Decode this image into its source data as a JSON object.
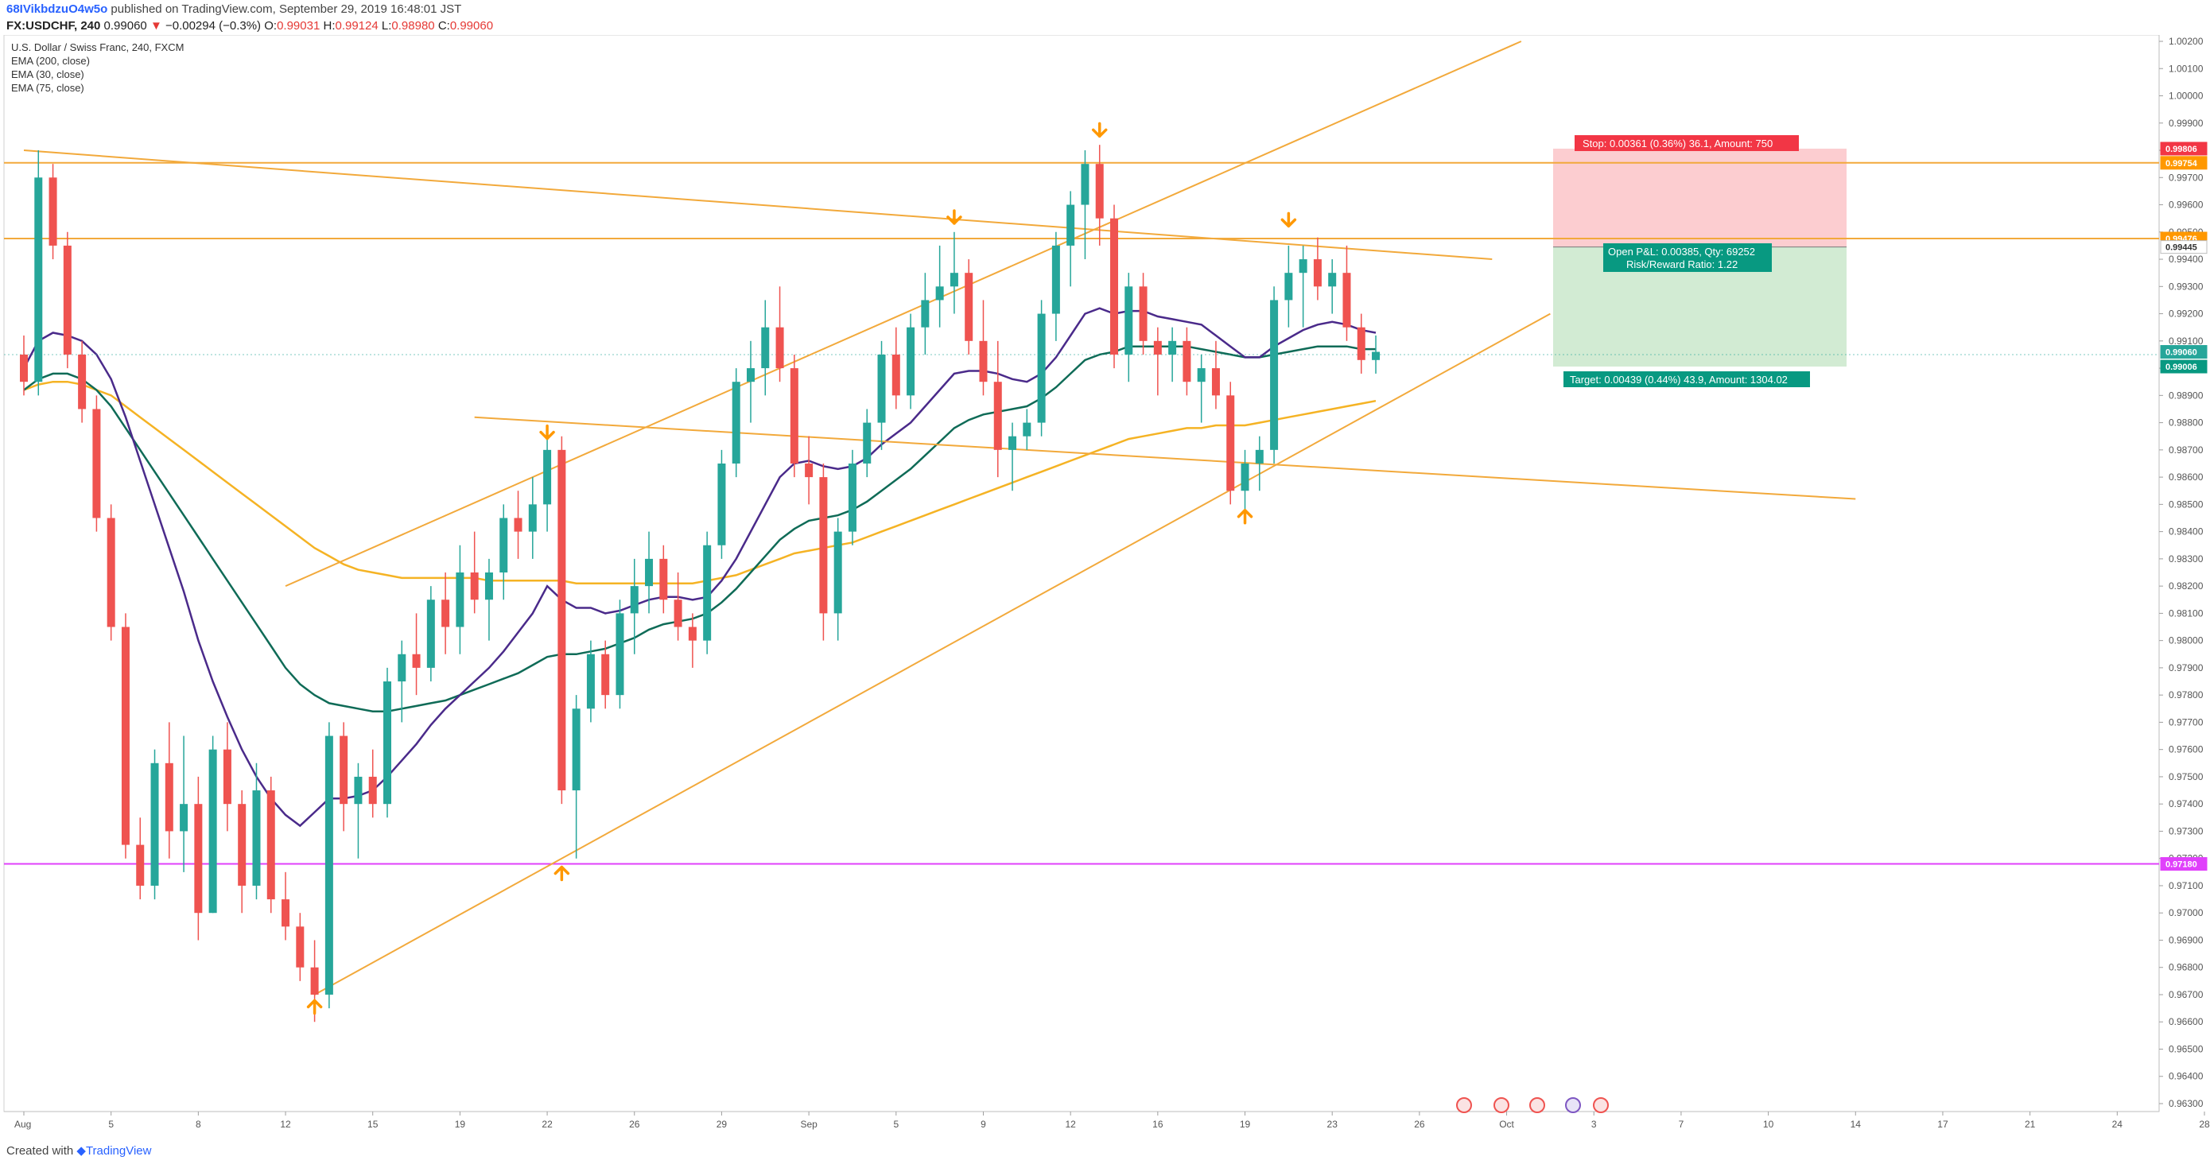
{
  "header": {
    "user": "68IVikbdzuO4w5o",
    "published": " published on TradingView.com, September 29, 2019 16:48:01 JST",
    "symbol": "FX:USDCHF, 240",
    "last": "0.99060",
    "change_arrow": "▼",
    "change": "−0.00294 (−0.3%)",
    "o_label": "O:",
    "o": "0.99031",
    "h_label": "H:",
    "h": "0.99124",
    "l_label": "L:",
    "l": "0.98980",
    "c_label": "C:",
    "c": "0.99060"
  },
  "legend": {
    "title": "U.S. Dollar / Swiss Franc, 240, FXCM",
    "items": [
      "EMA (200, close)",
      "EMA (30, close)",
      "EMA (75, close)"
    ]
  },
  "footer": {
    "created": "Created with",
    "brand": "TradingView"
  },
  "position": {
    "stop": "Stop: 0.00361 (0.36%) 36.1, Amount: 750",
    "open": "Open P&L: 0.00385, Qty: 69252",
    "rr": "Risk/Reward Ratio: 1.22",
    "target": "Target: 0.00439 (0.44%) 43.9, Amount: 1304.02",
    "entry": 0.99445,
    "stop_price": 0.99806,
    "target_price": 0.99006
  },
  "price_badges": [
    {
      "price": 0.99806,
      "label": "0.99806",
      "color": "#f23645"
    },
    {
      "price": 0.99754,
      "label": "0.99754",
      "color": "#ff9800"
    },
    {
      "price": 0.99476,
      "label": "0.99476",
      "color": "#ff9800"
    },
    {
      "price": 0.99445,
      "label": "0.99445",
      "color": "#ffffff",
      "text_color": "#333333"
    },
    {
      "price": 0.9906,
      "label": "0.99060",
      "color": "#26a69a"
    },
    {
      "price": 0.99006,
      "label": "0.99006",
      "color": "#089981"
    },
    {
      "price": 0.9718,
      "label": "0.97180",
      "color": "#e040fb"
    }
  ],
  "colors": {
    "up": "#26a69a",
    "down": "#ef5350",
    "ema200": "#f5b324",
    "ema30": "#4a2a8a",
    "ema75": "#0f6b57",
    "trendline": "#f2a93b",
    "support_line": "#e040fb",
    "stop_zone": "#f23645",
    "target_zone": "#4caf50",
    "marker": "#ff9800"
  },
  "chart_data": {
    "type": "candlestick",
    "yaxis": {
      "min": 0.963,
      "max": 1.002,
      "ticks": [
        "1.00200",
        "1.00100",
        "1.00000",
        "0.99900",
        "0.99800",
        "0.99700",
        "0.99600",
        "0.99500",
        "0.99400",
        "0.99300",
        "0.99200",
        "0.99100",
        "0.99000",
        "0.98900",
        "0.98800",
        "0.98700",
        "0.98600",
        "0.98500",
        "0.98400",
        "0.98300",
        "0.98200",
        "0.98100",
        "0.98000",
        "0.97900",
        "0.97800",
        "0.97700",
        "0.97600",
        "0.97500",
        "0.97400",
        "0.97300",
        "0.97200",
        "0.97100",
        "0.97000",
        "0.96900",
        "0.96800",
        "0.96700",
        "0.96600",
        "0.96500",
        "0.96400",
        "0.96300"
      ]
    },
    "xaxis": {
      "labels": [
        "Aug",
        "5",
        "8",
        "12",
        "15",
        "19",
        "22",
        "26",
        "29",
        "Sep",
        "5",
        "9",
        "12",
        "16",
        "19",
        "23",
        "26",
        "Oct",
        "3",
        "7",
        "10",
        "14",
        "17",
        "21",
        "24",
        "28"
      ],
      "label_index": [
        0,
        6,
        12,
        18,
        24,
        30,
        36,
        42,
        48,
        54,
        60,
        66,
        72,
        78,
        84,
        90,
        96,
        102,
        108,
        114,
        120,
        126,
        132,
        138,
        144,
        150
      ]
    },
    "horizontal_levels": [
      0.99754,
      0.99476,
      0.9718
    ],
    "trendlines": [
      {
        "from": [
          0,
          0.998
        ],
        "to": [
          101,
          0.994
        ]
      },
      {
        "from": [
          18,
          0.982
        ],
        "to": [
          103,
          1.002
        ]
      },
      {
        "from": [
          20,
          0.967
        ],
        "to": [
          105,
          0.992
        ]
      },
      {
        "from": [
          31,
          0.9882
        ],
        "to": [
          126,
          0.9852
        ]
      }
    ],
    "markers": [
      {
        "i": 20,
        "price": 0.9669,
        "dir": "up"
      },
      {
        "i": 36,
        "price": 0.9873,
        "dir": "down"
      },
      {
        "i": 37,
        "price": 0.9718,
        "dir": "up"
      },
      {
        "i": 64,
        "price": 0.9952,
        "dir": "down"
      },
      {
        "i": 74,
        "price": 0.9984,
        "dir": "down"
      },
      {
        "i": 84,
        "price": 0.9849,
        "dir": "up"
      },
      {
        "i": 87,
        "price": 0.9951,
        "dir": "down"
      }
    ],
    "candles": [
      [
        0.9905,
        0.9912,
        0.989,
        0.9895
      ],
      [
        0.9895,
        0.998,
        0.989,
        0.997
      ],
      [
        0.997,
        0.9975,
        0.994,
        0.9945
      ],
      [
        0.9945,
        0.995,
        0.99,
        0.9905
      ],
      [
        0.9905,
        0.991,
        0.988,
        0.9885
      ],
      [
        0.9885,
        0.989,
        0.984,
        0.9845
      ],
      [
        0.9845,
        0.985,
        0.98,
        0.9805
      ],
      [
        0.9805,
        0.981,
        0.972,
        0.9725
      ],
      [
        0.9725,
        0.9735,
        0.9705,
        0.971
      ],
      [
        0.971,
        0.976,
        0.9705,
        0.9755
      ],
      [
        0.9755,
        0.977,
        0.972,
        0.973
      ],
      [
        0.973,
        0.9765,
        0.9715,
        0.974
      ],
      [
        0.974,
        0.975,
        0.969,
        0.97
      ],
      [
        0.97,
        0.9765,
        0.97,
        0.976
      ],
      [
        0.976,
        0.977,
        0.973,
        0.974
      ],
      [
        0.974,
        0.9745,
        0.97,
        0.971
      ],
      [
        0.971,
        0.9755,
        0.9705,
        0.9745
      ],
      [
        0.9745,
        0.975,
        0.97,
        0.9705
      ],
      [
        0.9705,
        0.9715,
        0.969,
        0.9695
      ],
      [
        0.9695,
        0.97,
        0.9675,
        0.968
      ],
      [
        0.968,
        0.969,
        0.966,
        0.967
      ],
      [
        0.967,
        0.977,
        0.9665,
        0.9765
      ],
      [
        0.9765,
        0.977,
        0.973,
        0.974
      ],
      [
        0.974,
        0.9755,
        0.972,
        0.975
      ],
      [
        0.975,
        0.976,
        0.9735,
        0.974
      ],
      [
        0.974,
        0.979,
        0.9735,
        0.9785
      ],
      [
        0.9785,
        0.98,
        0.977,
        0.9795
      ],
      [
        0.9795,
        0.981,
        0.978,
        0.979
      ],
      [
        0.979,
        0.982,
        0.9785,
        0.9815
      ],
      [
        0.9815,
        0.9825,
        0.9795,
        0.9805
      ],
      [
        0.9805,
        0.9835,
        0.9795,
        0.9825
      ],
      [
        0.9825,
        0.984,
        0.981,
        0.9815
      ],
      [
        0.9815,
        0.983,
        0.98,
        0.9825
      ],
      [
        0.9825,
        0.985,
        0.9815,
        0.9845
      ],
      [
        0.9845,
        0.9855,
        0.983,
        0.984
      ],
      [
        0.984,
        0.986,
        0.983,
        0.985
      ],
      [
        0.985,
        0.9875,
        0.984,
        0.987
      ],
      [
        0.987,
        0.9875,
        0.974,
        0.9745
      ],
      [
        0.9745,
        0.978,
        0.972,
        0.9775
      ],
      [
        0.9775,
        0.98,
        0.977,
        0.9795
      ],
      [
        0.9795,
        0.98,
        0.9775,
        0.978
      ],
      [
        0.978,
        0.9815,
        0.9775,
        0.981
      ],
      [
        0.981,
        0.983,
        0.9795,
        0.982
      ],
      [
        0.982,
        0.984,
        0.981,
        0.983
      ],
      [
        0.983,
        0.9835,
        0.981,
        0.9815
      ],
      [
        0.9815,
        0.9825,
        0.98,
        0.9805
      ],
      [
        0.9805,
        0.981,
        0.979,
        0.98
      ],
      [
        0.98,
        0.984,
        0.9795,
        0.9835
      ],
      [
        0.9835,
        0.987,
        0.983,
        0.9865
      ],
      [
        0.9865,
        0.99,
        0.986,
        0.9895
      ],
      [
        0.9895,
        0.991,
        0.988,
        0.99
      ],
      [
        0.99,
        0.9925,
        0.989,
        0.9915
      ],
      [
        0.9915,
        0.993,
        0.9895,
        0.99
      ],
      [
        0.99,
        0.9905,
        0.986,
        0.9865
      ],
      [
        0.9865,
        0.9875,
        0.985,
        0.986
      ],
      [
        0.986,
        0.9865,
        0.98,
        0.981
      ],
      [
        0.981,
        0.9845,
        0.98,
        0.984
      ],
      [
        0.984,
        0.987,
        0.9835,
        0.9865
      ],
      [
        0.9865,
        0.9885,
        0.986,
        0.988
      ],
      [
        0.988,
        0.991,
        0.987,
        0.9905
      ],
      [
        0.9905,
        0.9915,
        0.9885,
        0.989
      ],
      [
        0.989,
        0.992,
        0.9885,
        0.9915
      ],
      [
        0.9915,
        0.9935,
        0.9905,
        0.9925
      ],
      [
        0.9925,
        0.9945,
        0.9915,
        0.993
      ],
      [
        0.993,
        0.995,
        0.992,
        0.9935
      ],
      [
        0.9935,
        0.994,
        0.9905,
        0.991
      ],
      [
        0.991,
        0.9925,
        0.989,
        0.9895
      ],
      [
        0.9895,
        0.991,
        0.986,
        0.987
      ],
      [
        0.987,
        0.988,
        0.9855,
        0.9875
      ],
      [
        0.9875,
        0.9885,
        0.987,
        0.988
      ],
      [
        0.988,
        0.9925,
        0.9875,
        0.992
      ],
      [
        0.992,
        0.995,
        0.991,
        0.9945
      ],
      [
        0.9945,
        0.9965,
        0.993,
        0.996
      ],
      [
        0.996,
        0.998,
        0.994,
        0.9975
      ],
      [
        0.9975,
        0.9982,
        0.9945,
        0.9955
      ],
      [
        0.9955,
        0.996,
        0.99,
        0.9905
      ],
      [
        0.9905,
        0.9935,
        0.9895,
        0.993
      ],
      [
        0.993,
        0.9935,
        0.9905,
        0.991
      ],
      [
        0.991,
        0.9915,
        0.989,
        0.9905
      ],
      [
        0.9905,
        0.9915,
        0.9895,
        0.991
      ],
      [
        0.991,
        0.9915,
        0.989,
        0.9895
      ],
      [
        0.9895,
        0.9905,
        0.988,
        0.99
      ],
      [
        0.99,
        0.991,
        0.9885,
        0.989
      ],
      [
        0.989,
        0.9895,
        0.985,
        0.9855
      ],
      [
        0.9855,
        0.987,
        0.9845,
        0.9865
      ],
      [
        0.9865,
        0.9875,
        0.9855,
        0.987
      ],
      [
        0.987,
        0.993,
        0.9865,
        0.9925
      ],
      [
        0.9925,
        0.9945,
        0.9915,
        0.9935
      ],
      [
        0.9935,
        0.9945,
        0.9915,
        0.994
      ],
      [
        0.994,
        0.9948,
        0.9925,
        0.993
      ],
      [
        0.993,
        0.994,
        0.992,
        0.9935
      ],
      [
        0.9935,
        0.9945,
        0.991,
        0.9915
      ],
      [
        0.9915,
        0.992,
        0.9898,
        0.9903
      ],
      [
        0.9903,
        0.9912,
        0.9898,
        0.9906
      ]
    ],
    "ema200": [
      0.9892,
      0.9894,
      0.9895,
      0.9895,
      0.9894,
      0.9892,
      0.989,
      0.9886,
      0.9882,
      0.9878,
      0.9874,
      0.987,
      0.9866,
      0.9862,
      0.9858,
      0.9854,
      0.985,
      0.9846,
      0.9842,
      0.9838,
      0.9834,
      0.9831,
      0.9828,
      0.9826,
      0.9825,
      0.9824,
      0.9823,
      0.9823,
      0.9823,
      0.9823,
      0.9823,
      0.9823,
      0.9822,
      0.9822,
      0.9822,
      0.9822,
      0.9822,
      0.9822,
      0.9821,
      0.9821,
      0.9821,
      0.9821,
      0.9821,
      0.9821,
      0.9821,
      0.9821,
      0.9821,
      0.9822,
      0.9823,
      0.9824,
      0.9826,
      0.9828,
      0.983,
      0.9832,
      0.9833,
      0.9834,
      0.9835,
      0.9836,
      0.9838,
      0.984,
      0.9842,
      0.9844,
      0.9846,
      0.9848,
      0.985,
      0.9852,
      0.9854,
      0.9856,
      0.9858,
      0.986,
      0.9862,
      0.9864,
      0.9866,
      0.9868,
      0.987,
      0.9872,
      0.9874,
      0.9875,
      0.9876,
      0.9877,
      0.9878,
      0.9878,
      0.9879,
      0.9879,
      0.9879,
      0.988,
      0.9881,
      0.9882,
      0.9883,
      0.9884,
      0.9885,
      0.9886,
      0.9887,
      0.9888
    ],
    "ema75": [
      0.9892,
      0.9896,
      0.9898,
      0.9898,
      0.9896,
      0.9892,
      0.9886,
      0.9878,
      0.987,
      0.9862,
      0.9854,
      0.9846,
      0.9838,
      0.983,
      0.9822,
      0.9814,
      0.9806,
      0.9798,
      0.979,
      0.9784,
      0.978,
      0.9777,
      0.9776,
      0.9775,
      0.9774,
      0.9774,
      0.9775,
      0.9776,
      0.9777,
      0.9778,
      0.978,
      0.9782,
      0.9784,
      0.9786,
      0.9788,
      0.9791,
      0.9794,
      0.9795,
      0.9795,
      0.9796,
      0.9797,
      0.9799,
      0.9801,
      0.9804,
      0.9806,
      0.9807,
      0.9808,
      0.981,
      0.9814,
      0.9819,
      0.9825,
      0.9831,
      0.9837,
      0.9841,
      0.9844,
      0.9845,
      0.9846,
      0.9848,
      0.9851,
      0.9855,
      0.9859,
      0.9863,
      0.9868,
      0.9873,
      0.9878,
      0.9881,
      0.9883,
      0.9884,
      0.9885,
      0.9886,
      0.9889,
      0.9893,
      0.9898,
      0.9903,
      0.9905,
      0.9906,
      0.9908,
      0.9908,
      0.9908,
      0.9908,
      0.9908,
      0.9907,
      0.9906,
      0.9905,
      0.9904,
      0.9904,
      0.9905,
      0.9906,
      0.9907,
      0.9908,
      0.9908,
      0.9908,
      0.9907,
      0.9907
    ],
    "ema30": [
      0.99,
      0.991,
      0.9913,
      0.9912,
      0.991,
      0.9905,
      0.9896,
      0.9882,
      0.9866,
      0.985,
      0.9834,
      0.9818,
      0.98,
      0.9785,
      0.9772,
      0.976,
      0.975,
      0.9742,
      0.9736,
      0.9732,
      0.9737,
      0.9742,
      0.9742,
      0.9743,
      0.9745,
      0.975,
      0.9756,
      0.9762,
      0.9769,
      0.9775,
      0.978,
      0.9785,
      0.979,
      0.9796,
      0.9803,
      0.981,
      0.982,
      0.9815,
      0.9812,
      0.9812,
      0.981,
      0.9811,
      0.9813,
      0.9815,
      0.9816,
      0.9816,
      0.9815,
      0.9816,
      0.9822,
      0.983,
      0.984,
      0.985,
      0.986,
      0.9865,
      0.9866,
      0.9864,
      0.9863,
      0.9864,
      0.9867,
      0.9872,
      0.9876,
      0.988,
      0.9886,
      0.9892,
      0.9898,
      0.9899,
      0.9899,
      0.9898,
      0.9896,
      0.9895,
      0.9898,
      0.9904,
      0.9912,
      0.992,
      0.9922,
      0.992,
      0.9921,
      0.9921,
      0.9919,
      0.9918,
      0.9917,
      0.9916,
      0.9912,
      0.9908,
      0.9904,
      0.9904,
      0.9908,
      0.9911,
      0.9914,
      0.9916,
      0.9917,
      0.9916,
      0.9914,
      0.9913
    ]
  }
}
